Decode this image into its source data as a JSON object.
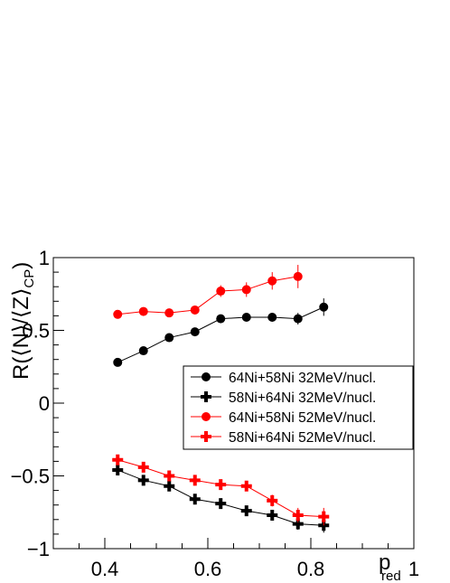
{
  "chart_data": {
    "type": "scatter",
    "xlabel": "p",
    "xlabel_sub": "red",
    "ylabel": "R(⟨N⟩/⟨Z⟩",
    "ylabel_sub": "CP",
    "ylabel_end": ")",
    "xlim": [
      0.3,
      1.0
    ],
    "ylim": [
      -1.0,
      1.0
    ],
    "x_ticks": [
      0.4,
      0.6,
      0.8,
      1.0
    ],
    "x_tick_labels": [
      "0.4",
      "0.6",
      "0.8",
      "1"
    ],
    "y_ticks": [
      -1.0,
      -0.5,
      0.0,
      0.5,
      1.0
    ],
    "y_tick_labels": [
      "−1",
      "−0.5",
      "0",
      "0.5",
      "1"
    ],
    "grid": false,
    "legend_position": "right-middle",
    "series": [
      {
        "name": "64Ni+58Ni 32MeV/nucl.",
        "color": "#000000",
        "marker": "circle",
        "x": [
          0.425,
          0.475,
          0.525,
          0.575,
          0.625,
          0.675,
          0.725,
          0.775,
          0.825
        ],
        "y": [
          0.28,
          0.36,
          0.45,
          0.49,
          0.58,
          0.59,
          0.59,
          0.58,
          0.66
        ],
        "err": [
          0.02,
          0.02,
          0.02,
          0.02,
          0.02,
          0.02,
          0.03,
          0.04,
          0.06
        ]
      },
      {
        "name": "58Ni+64Ni 32MeV/nucl.",
        "color": "#000000",
        "marker": "cross",
        "x": [
          0.425,
          0.475,
          0.525,
          0.575,
          0.625,
          0.675,
          0.725,
          0.775,
          0.825
        ],
        "y": [
          -0.46,
          -0.53,
          -0.57,
          -0.66,
          -0.69,
          -0.74,
          -0.77,
          -0.83,
          -0.84
        ],
        "err": [
          0.02,
          0.02,
          0.02,
          0.02,
          0.02,
          0.03,
          0.03,
          0.04,
          0.05
        ]
      },
      {
        "name": "64Ni+58Ni 52MeV/nucl.",
        "color": "#ff0000",
        "marker": "circle",
        "x": [
          0.425,
          0.475,
          0.525,
          0.575,
          0.625,
          0.675,
          0.725,
          0.775
        ],
        "y": [
          0.61,
          0.63,
          0.62,
          0.64,
          0.77,
          0.78,
          0.84,
          0.87
        ],
        "err": [
          0.03,
          0.02,
          0.02,
          0.03,
          0.04,
          0.05,
          0.06,
          0.08
        ]
      },
      {
        "name": "58Ni+64Ni 52MeV/nucl.",
        "color": "#ff0000",
        "marker": "cross",
        "x": [
          0.425,
          0.475,
          0.525,
          0.575,
          0.625,
          0.675,
          0.725,
          0.775,
          0.825
        ],
        "y": [
          -0.39,
          -0.44,
          -0.5,
          -0.53,
          -0.56,
          -0.57,
          -0.67,
          -0.77,
          -0.78
        ],
        "err": [
          0.02,
          0.02,
          0.02,
          0.02,
          0.02,
          0.03,
          0.04,
          0.05,
          0.06
        ]
      }
    ]
  }
}
